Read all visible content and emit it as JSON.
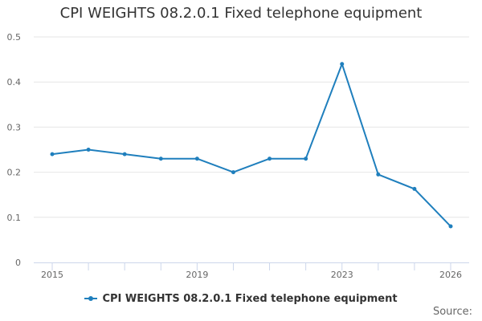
{
  "colors": {
    "series": "#1f7fbd",
    "grid": "#e6e6e6",
    "axis": "#ccd6eb"
  },
  "chart_data": {
    "type": "line",
    "title": "CPI WEIGHTS 08.2.0.1 Fixed telephone equipment",
    "xlabel": "",
    "ylabel": "",
    "x": [
      2015,
      2016,
      2017,
      2018,
      2019,
      2020,
      2021,
      2022,
      2023,
      2024,
      2025,
      2026
    ],
    "series": [
      {
        "name": "CPI WEIGHTS 08.2.0.1 Fixed telephone equipment",
        "values": [
          0.24,
          0.25,
          0.24,
          0.23,
          0.23,
          0.2,
          0.23,
          0.23,
          0.44,
          0.195,
          0.163,
          0.08
        ]
      }
    ],
    "xlim": [
      2015,
      2026
    ],
    "ylim": [
      0,
      0.5
    ],
    "x_ticks": [
      "2015",
      "2019",
      "2023",
      "2026"
    ],
    "y_ticks": [
      "0",
      "0.1",
      "0.2",
      "0.3",
      "0.4",
      "0.5"
    ],
    "grid": true,
    "legend": "bottom-center"
  },
  "source_label": "Source:"
}
